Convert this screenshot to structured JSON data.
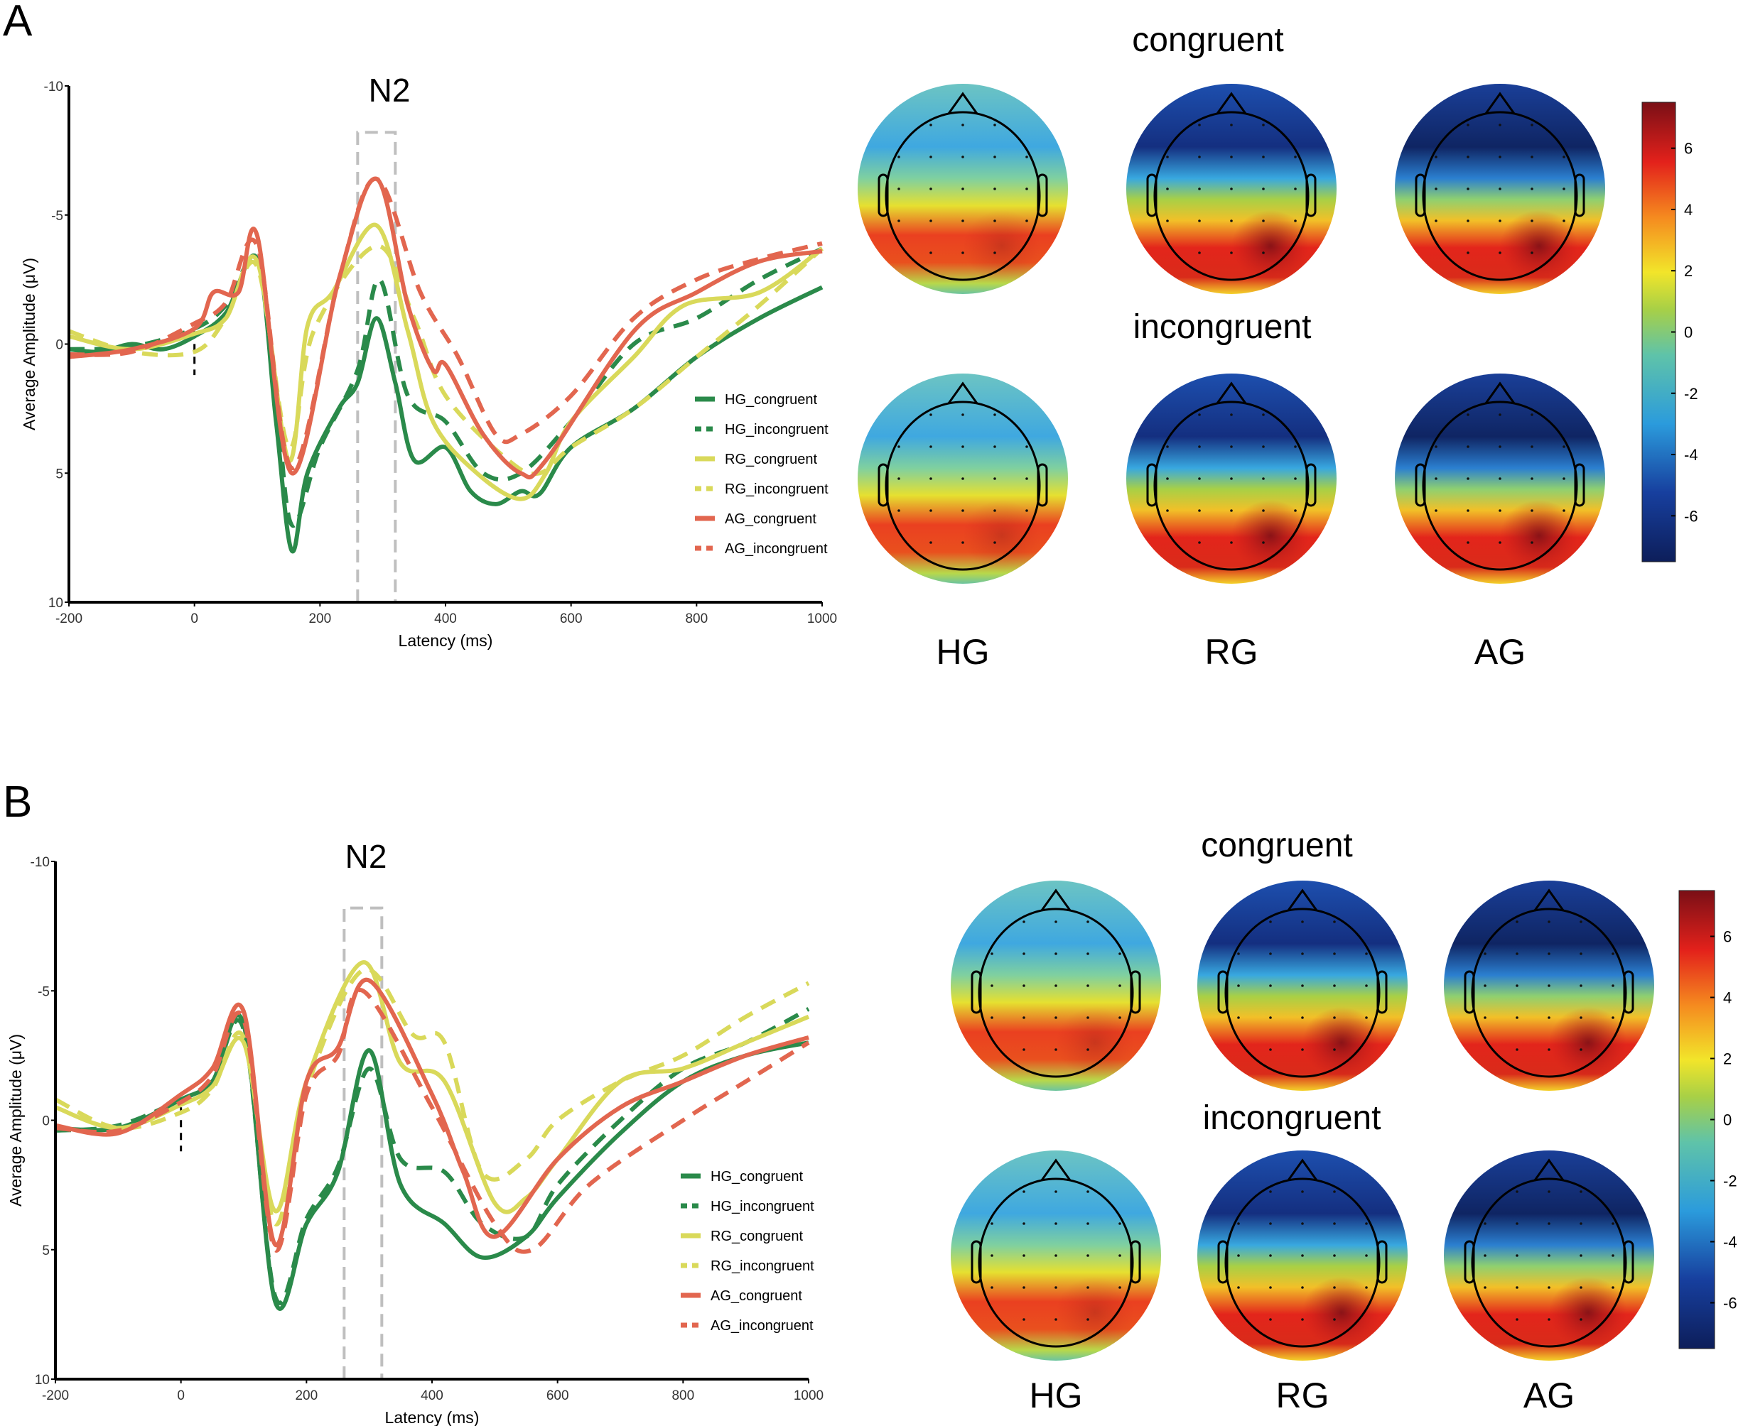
{
  "panels": [
    {
      "letter": "A",
      "n2_label": "N2",
      "congruent_label": "congruent",
      "incongruent_label": "incongruent",
      "group_labels": [
        "HG",
        "RG",
        "AG"
      ]
    },
    {
      "letter": "B",
      "n2_label": "N2",
      "congruent_label": "congruent",
      "incongruent_label": "incongruent",
      "group_labels": [
        "HG",
        "RG",
        "AG"
      ]
    }
  ],
  "colorbar": {
    "ticks": [
      "6",
      "4",
      "2",
      "0",
      "-2",
      "-4",
      "-6"
    ],
    "tick_values": [
      6,
      4,
      2,
      0,
      -2,
      -4,
      -6
    ],
    "range": [
      -7.5,
      7.5
    ]
  },
  "colors": {
    "HG": "#2a8a4a",
    "RG": "#d9d95a",
    "AG": "#e2664f",
    "n2_window": "#bfbfbf"
  },
  "chart_data": [
    {
      "type": "line",
      "title": "N2",
      "xlabel": "Latency (ms)",
      "ylabel": "Average Amplitude (μV)",
      "xlim": [
        -200,
        1000
      ],
      "ylim": [
        10,
        -10
      ],
      "xticks": [
        -200,
        0,
        200,
        400,
        600,
        800,
        1000
      ],
      "yticks": [
        -10,
        -5,
        0,
        5,
        10
      ],
      "n2_window_ms": [
        260,
        320
      ],
      "legend_position": "right",
      "series": [
        {
          "name": "HG_congruent",
          "group": "HG",
          "style": "solid",
          "x": [
            -200,
            -150,
            -100,
            -50,
            0,
            50,
            100,
            130,
            155,
            180,
            230,
            260,
            290,
            320,
            350,
            400,
            440,
            480,
            520,
            550,
            600,
            700,
            800,
            900,
            1000
          ],
          "y": [
            0.2,
            0.3,
            0,
            0.2,
            -0.3,
            -1.2,
            -3.3,
            3,
            8,
            5,
            2.5,
            1.5,
            -1,
            1.5,
            4.5,
            4,
            5.7,
            6.2,
            5.7,
            5.8,
            4,
            2.5,
            0.5,
            -1,
            -2.2
          ]
        },
        {
          "name": "HG_incongruent",
          "group": "HG",
          "style": "dashed",
          "x": [
            -200,
            -100,
            0,
            50,
            100,
            130,
            155,
            200,
            260,
            295,
            340,
            400,
            460,
            520,
            600,
            700,
            800,
            900,
            1000
          ],
          "y": [
            0.2,
            0.1,
            -0.6,
            -1.5,
            -3.3,
            2,
            7,
            4,
            1,
            -2.5,
            2,
            3,
            5,
            5,
            3,
            0,
            -1,
            -2.5,
            -3.7
          ]
        },
        {
          "name": "RG_congruent",
          "group": "RG",
          "style": "solid",
          "x": [
            -200,
            -100,
            0,
            50,
            100,
            150,
            180,
            220,
            290,
            340,
            380,
            450,
            520,
            560,
            600,
            700,
            780,
            900,
            1000
          ],
          "y": [
            -0.3,
            0.2,
            -0.4,
            -1,
            -3.2,
            4.5,
            -0.7,
            -2,
            -4.6,
            -0.5,
            3,
            5,
            6,
            5,
            3,
            0.5,
            -1.5,
            -2,
            -3.7
          ]
        },
        {
          "name": "RG_incongruent",
          "group": "RG",
          "style": "dashed",
          "x": [
            -200,
            -100,
            0,
            50,
            100,
            150,
            190,
            290,
            350,
            400,
            500,
            550,
            600,
            700,
            800,
            900,
            1000
          ],
          "y": [
            -0.5,
            0.3,
            0.3,
            -1,
            -3,
            4,
            -0.5,
            -3.8,
            -1,
            2,
            4.5,
            5,
            4,
            2.5,
            0.5,
            -1.5,
            -3.7
          ]
        },
        {
          "name": "AG_congruent",
          "group": "AG",
          "style": "solid",
          "x": [
            -200,
            -100,
            0,
            30,
            70,
            100,
            155,
            230,
            290,
            340,
            380,
            400,
            460,
            520,
            560,
            700,
            800,
            900,
            1000
          ],
          "y": [
            0.5,
            0.2,
            -0.6,
            -2,
            -2,
            -4.2,
            5,
            -2.5,
            -6.4,
            -1.5,
            1,
            0.8,
            3.5,
            5,
            4.5,
            -0.5,
            -2,
            -3.2,
            -3.6
          ]
        },
        {
          "name": "AG_incongruent",
          "group": "AG",
          "style": "dashed",
          "x": [
            -200,
            -100,
            0,
            50,
            100,
            155,
            230,
            290,
            360,
            420,
            480,
            520,
            600,
            700,
            800,
            900,
            1000
          ],
          "y": [
            0.4,
            0.3,
            -0.8,
            -1.6,
            -3.8,
            4.8,
            -2.5,
            -6.4,
            -2,
            0.5,
            3.5,
            3.5,
            2,
            -1,
            -2.5,
            -3.3,
            -3.9
          ]
        }
      ]
    },
    {
      "type": "line",
      "title": "N2",
      "xlabel": "Latency (ms)",
      "ylabel": "Average Amplitude (μV)",
      "xlim": [
        -200,
        1000
      ],
      "ylim": [
        10,
        -10
      ],
      "xticks": [
        -200,
        0,
        200,
        400,
        600,
        800,
        1000
      ],
      "yticks": [
        -10,
        -5,
        0,
        5,
        10
      ],
      "n2_window_ms": [
        260,
        320
      ],
      "legend_position": "right",
      "series": [
        {
          "name": "HG_congruent",
          "group": "HG",
          "style": "solid",
          "x": [
            -200,
            -100,
            0,
            50,
            100,
            150,
            200,
            250,
            300,
            350,
            420,
            480,
            550,
            600,
            700,
            800,
            900,
            1000
          ],
          "y": [
            0.3,
            0.3,
            -0.8,
            -1.5,
            -3.7,
            7,
            4,
            2,
            -2.7,
            2.5,
            4,
            5.3,
            4.5,
            3,
            0.5,
            -1.5,
            -2.5,
            -3
          ]
        },
        {
          "name": "HG_incongruent",
          "group": "HG",
          "style": "dashed",
          "x": [
            -200,
            -100,
            0,
            50,
            100,
            150,
            200,
            250,
            300,
            350,
            420,
            480,
            550,
            600,
            700,
            800,
            900,
            1000
          ],
          "y": [
            0.4,
            0.2,
            -0.8,
            -1.5,
            -3.5,
            6.8,
            3.8,
            1.8,
            -2,
            1.5,
            2,
            4,
            4.5,
            2.5,
            0,
            -2,
            -3,
            -4.3
          ]
        },
        {
          "name": "RG_congruent",
          "group": "RG",
          "style": "solid",
          "x": [
            -200,
            -100,
            0,
            50,
            100,
            150,
            200,
            290,
            350,
            420,
            500,
            550,
            600,
            700,
            800,
            900,
            1000
          ],
          "y": [
            -0.5,
            0.3,
            -0.6,
            -1.3,
            -3,
            3.5,
            -1.5,
            -6.1,
            -2.2,
            -1.5,
            3.2,
            3,
            1.5,
            -1.5,
            -2,
            -3,
            -4
          ]
        },
        {
          "name": "RG_incongruent",
          "group": "RG",
          "style": "dashed",
          "x": [
            -200,
            -100,
            0,
            50,
            100,
            150,
            200,
            290,
            370,
            420,
            480,
            550,
            600,
            700,
            800,
            900,
            1000
          ],
          "y": [
            -0.8,
            0.3,
            -0.3,
            -1.2,
            -3.2,
            4,
            -1.2,
            -5.8,
            -3.3,
            -3,
            2,
            1.5,
            0,
            -1.5,
            -2.5,
            -4,
            -5.3
          ]
        },
        {
          "name": "AG_congruent",
          "group": "AG",
          "style": "solid",
          "x": [
            -200,
            -100,
            0,
            50,
            100,
            150,
            200,
            250,
            300,
            400,
            450,
            500,
            600,
            700,
            800,
            900,
            1000
          ],
          "y": [
            0.2,
            0.5,
            -1,
            -2,
            -4.2,
            4.8,
            -1.5,
            -2.8,
            -5.4,
            -1,
            2,
            4.5,
            1.5,
            -0.5,
            -1.5,
            -2.5,
            -3.2
          ]
        },
        {
          "name": "AG_incongruent",
          "group": "AG",
          "style": "dashed",
          "x": [
            -200,
            -100,
            0,
            50,
            100,
            150,
            200,
            250,
            290,
            400,
            500,
            560,
            650,
            800,
            900,
            1000
          ],
          "y": [
            0.3,
            0.4,
            -0.7,
            -1.7,
            -3.9,
            5,
            -1,
            -2.5,
            -5,
            -0.5,
            4,
            5,
            2.5,
            0,
            -1.5,
            -3
          ]
        }
      ]
    }
  ]
}
